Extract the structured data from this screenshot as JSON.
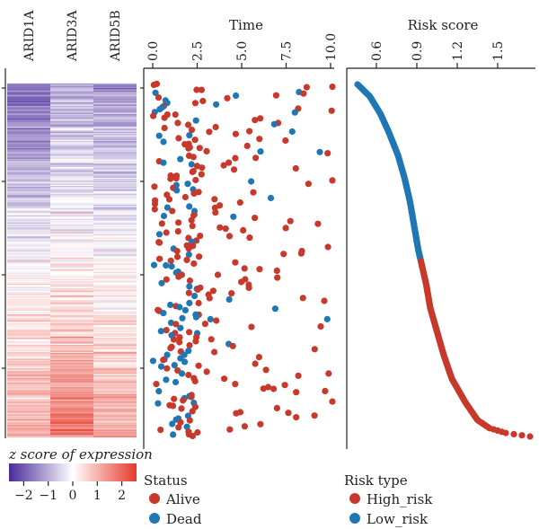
{
  "colors": {
    "alive": "#c8392b",
    "dead": "#1f77b4",
    "high_risk": "#c8392b",
    "low_risk": "#1f77b4",
    "heat_low": "#4a2a9a",
    "heat_mid": "#ffffff",
    "heat_high": "#e63a2c"
  },
  "chart_data": [
    {
      "type": "heatmap",
      "columns": [
        "ARID1A",
        "ARID3A",
        "ARID5B"
      ],
      "rows": 300,
      "row_order": "sorted by risk score (lowest at top)",
      "profile_means": {
        "ARID1A": [
          -1.6,
          -1.2,
          -0.8,
          -0.5,
          -0.2,
          0.1,
          0.3,
          0.5,
          0.7,
          0.9
        ],
        "ARID3A": [
          -0.8,
          -0.6,
          -0.4,
          -0.2,
          0.0,
          0.2,
          0.5,
          0.8,
          1.2,
          1.7
        ],
        "ARID5B": [
          -1.2,
          -0.8,
          -0.5,
          -0.3,
          -0.1,
          0.1,
          0.3,
          0.5,
          0.7,
          0.9
        ]
      },
      "legend_title": "z score of expression",
      "legend_ticks": [
        "−2",
        "−1",
        "0",
        "1",
        "2"
      ],
      "legend_range": [
        -2.6,
        2.6
      ]
    },
    {
      "type": "scatter",
      "title": "Time",
      "x_ticks": [
        "0.0",
        "2.5",
        "5.0",
        "7.5",
        "10.0"
      ],
      "x_tick_values": [
        0,
        2.5,
        5,
        7.5,
        10
      ],
      "xlim": [
        0,
        10.2
      ],
      "samples": 300,
      "legend_title": "Status",
      "legend": [
        "Alive",
        "Dead"
      ]
    },
    {
      "type": "line",
      "title": "Risk score",
      "x_ticks": [
        "0.6",
        "0.9",
        "1.2",
        "1.5"
      ],
      "x_tick_values": [
        0.6,
        0.9,
        1.2,
        1.5
      ],
      "xlim": [
        0.42,
        1.74
      ],
      "samples": 300,
      "cutoff_rank": 150,
      "curve_keypoints": [
        [
          0,
          0.46
        ],
        [
          10,
          0.55
        ],
        [
          25,
          0.63
        ],
        [
          40,
          0.69
        ],
        [
          60,
          0.76
        ],
        [
          80,
          0.81
        ],
        [
          100,
          0.85
        ],
        [
          120,
          0.88
        ],
        [
          140,
          0.91
        ],
        [
          150,
          0.93
        ],
        [
          170,
          0.97
        ],
        [
          190,
          1.0
        ],
        [
          210,
          1.05
        ],
        [
          230,
          1.1
        ],
        [
          250,
          1.16
        ],
        [
          270,
          1.26
        ],
        [
          285,
          1.35
        ],
        [
          292,
          1.44
        ],
        [
          296,
          1.56
        ],
        [
          299,
          1.74
        ]
      ],
      "legend_title": "Risk type",
      "legend": [
        "High_risk",
        "Low_risk"
      ]
    }
  ]
}
